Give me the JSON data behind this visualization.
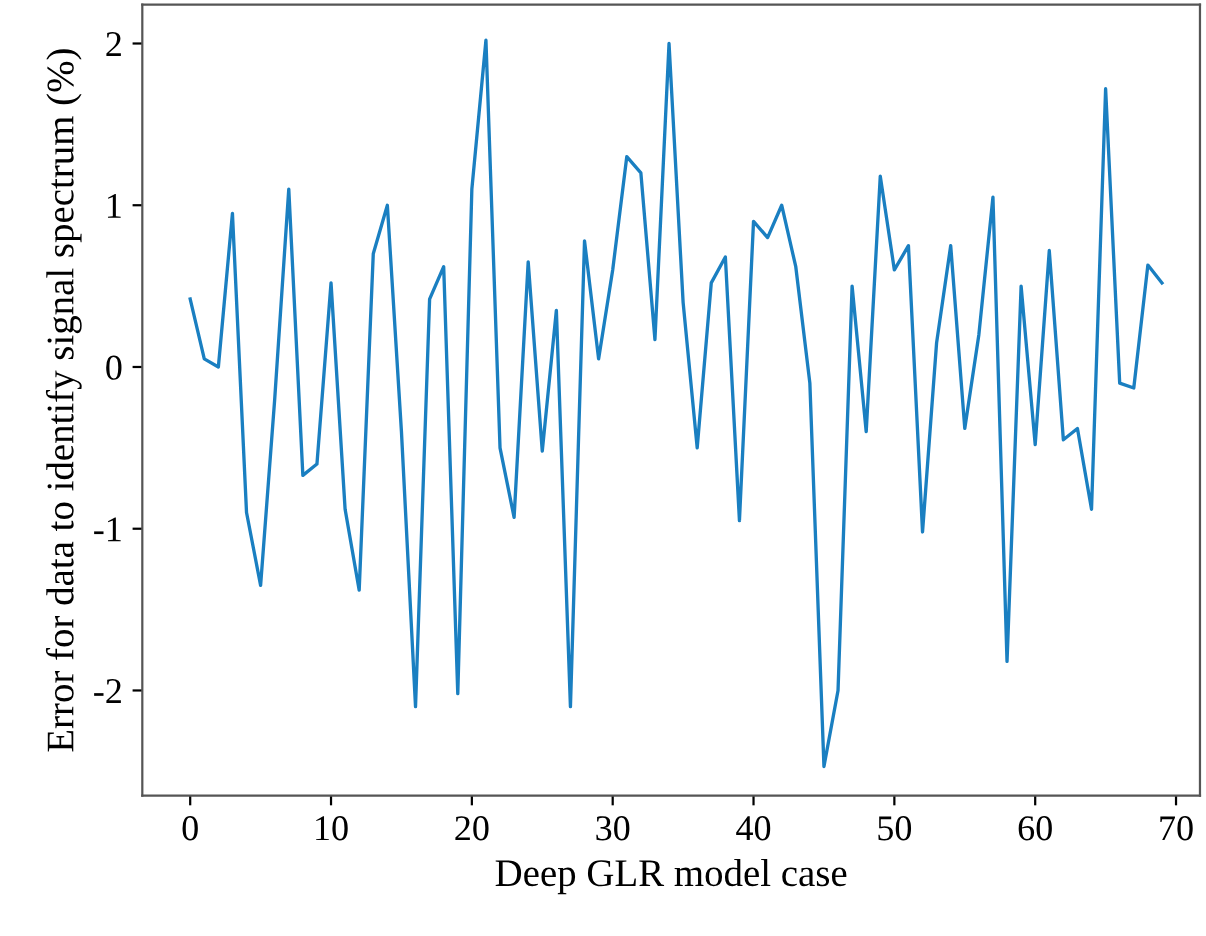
{
  "chart_data": {
    "type": "line",
    "xlabel": "Deep GLR model case",
    "ylabel": "Error for data to identify signal spectrum (%)",
    "x": [
      0,
      1,
      2,
      3,
      4,
      5,
      6,
      7,
      8,
      9,
      10,
      11,
      12,
      13,
      14,
      15,
      16,
      17,
      18,
      19,
      20,
      21,
      22,
      23,
      24,
      25,
      26,
      27,
      28,
      29,
      30,
      31,
      32,
      33,
      34,
      35,
      36,
      37,
      38,
      39,
      40,
      41,
      42,
      43,
      44,
      45,
      46,
      47,
      48,
      49,
      50,
      51,
      52,
      53,
      54,
      55,
      56,
      57,
      58,
      59,
      60,
      61,
      62,
      63,
      64,
      65,
      66,
      67,
      68,
      69
    ],
    "series": [
      {
        "color": "#1a7fc1",
        "values": [
          0.42,
          0.05,
          0.0,
          0.95,
          -0.9,
          -1.35,
          -0.2,
          1.1,
          -0.67,
          -0.6,
          0.52,
          -0.88,
          -1.38,
          0.7,
          1.0,
          -0.4,
          -2.1,
          0.42,
          0.62,
          -2.02,
          1.1,
          2.02,
          -0.5,
          -0.93,
          0.65,
          -0.52,
          0.35,
          -2.1,
          0.78,
          0.05,
          0.6,
          1.3,
          1.2,
          0.17,
          2.0,
          0.4,
          -0.5,
          0.52,
          0.68,
          -0.95,
          0.9,
          0.8,
          1.0,
          0.62,
          -0.1,
          -2.47,
          -2.0,
          0.5,
          -0.4,
          1.18,
          0.6,
          0.75,
          -1.02,
          0.15,
          0.75,
          -0.38,
          0.2,
          1.05,
          -1.82,
          0.5,
          -0.48,
          0.72,
          -0.45,
          -0.38,
          -0.88,
          1.72,
          -0.1,
          -0.13,
          0.63,
          0.52
        ]
      }
    ],
    "xlim": [
      -3.4,
      71.7
    ],
    "ylim": [
      -2.65,
      2.24
    ],
    "xticks": [
      0,
      10,
      20,
      30,
      40,
      50,
      60,
      70
    ],
    "yticks": [
      -2,
      -1,
      0,
      1,
      2
    ],
    "grid": false,
    "legend": false,
    "marker": "none",
    "line_style": "solid"
  }
}
